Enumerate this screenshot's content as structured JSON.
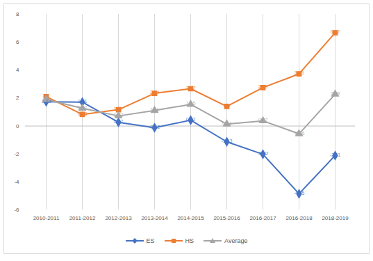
{
  "chart_data": {
    "type": "line",
    "categories": [
      "2010-2011",
      "2011-2012",
      "2012-2013",
      "2013-2014",
      "2014-2015",
      "2015-2016",
      "2016-2017",
      "2016-2018",
      "2018-2019"
    ],
    "series": [
      {
        "name": "ES",
        "color": "#4472c4",
        "marker": "diamond",
        "values": [
          1.73,
          1.71,
          0.27,
          -0.12,
          0.42,
          -1.13,
          -2.02,
          -4.85,
          -2.11
        ]
      },
      {
        "name": "HS",
        "color": "#ed7d31",
        "marker": "square",
        "values": [
          2.1,
          0.83,
          1.17,
          2.34,
          2.67,
          1.4,
          2.75,
          3.73,
          6.67
        ]
      },
      {
        "name": "Average",
        "color": "#a5a5a5",
        "marker": "triangle",
        "values": [
          1.9,
          1.27,
          0.72,
          1.11,
          1.55,
          0.14,
          0.37,
          -0.56,
          2.28
        ]
      }
    ],
    "ylim": [
      -6,
      8
    ],
    "yticks": [
      -6,
      -4,
      -2,
      0,
      2,
      4,
      6,
      8
    ],
    "grid": true,
    "data_labels": true,
    "legend": "bottom"
  }
}
